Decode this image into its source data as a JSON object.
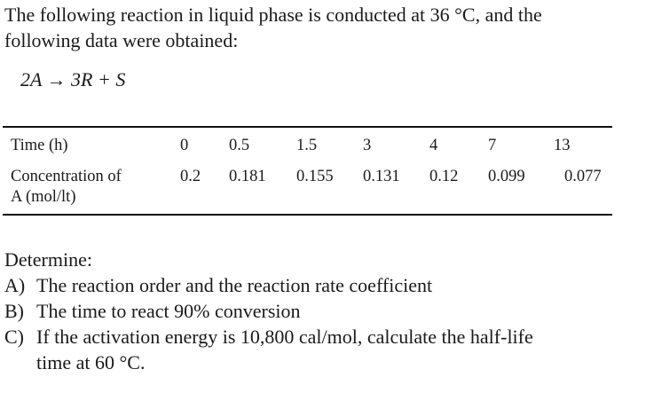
{
  "intro": {
    "lines": [
      "The following reaction in liquid phase is conducted at 36 °C, and the",
      "following data were obtained:"
    ]
  },
  "equation": "2A → 3R + S",
  "table": {
    "rows": [
      {
        "label": [
          "Time (h)"
        ],
        "values": [
          0,
          0.5,
          1.5,
          3,
          4,
          7,
          13
        ]
      },
      {
        "label": [
          "Concentration of",
          "A (mol/lt)"
        ],
        "values": [
          0.2,
          0.181,
          0.155,
          0.131,
          0.12,
          0.099,
          0.077
        ]
      }
    ]
  },
  "questions": {
    "heading": "Determine:",
    "items": [
      {
        "marker": "A)",
        "lines": [
          "The reaction order and the reaction rate coefficient"
        ]
      },
      {
        "marker": "B)",
        "lines": [
          "The time to react 90% conversion"
        ]
      },
      {
        "marker": "C)",
        "lines": [
          "If the activation energy is 10,800 cal/mol, calculate the half-life",
          "time at 60 °C."
        ]
      }
    ]
  }
}
